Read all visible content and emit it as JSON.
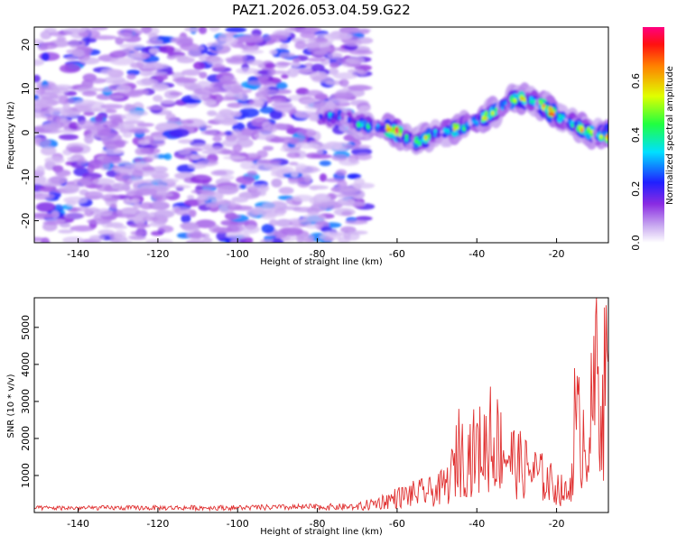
{
  "title": "PAZ1.2026.053.04.59.G22",
  "chart_data": [
    {
      "type": "heatmap",
      "xlabel": "Height of straight line (km)",
      "ylabel": "Frequency (Hz)",
      "xlim": [
        -151,
        -7
      ],
      "ylim": [
        -25,
        24
      ],
      "xticks": [
        -140,
        -120,
        -100,
        -80,
        -60,
        -40,
        -20
      ],
      "yticks": [
        20,
        10,
        0,
        -10,
        -20
      ],
      "colorbar": {
        "label": "Normalized spectral amplitude",
        "range": [
          0,
          0.8
        ],
        "ticks": [
          0.0,
          0.2,
          0.4,
          0.6
        ]
      },
      "noise_region": {
        "x": [
          -151,
          -68
        ],
        "amplitude": [
          0.05,
          0.3
        ]
      },
      "signal_ridge": [
        {
          "x": -80,
          "freq": 3,
          "amp": 0.25
        },
        {
          "x": -75,
          "freq": 4,
          "amp": 0.3
        },
        {
          "x": -70,
          "freq": 2,
          "amp": 0.35
        },
        {
          "x": -65,
          "freq": 1.5,
          "amp": 0.45
        },
        {
          "x": -60,
          "freq": 0,
          "amp": 0.75
        },
        {
          "x": -55,
          "freq": -2,
          "amp": 0.5
        },
        {
          "x": -50,
          "freq": 0,
          "amp": 0.45
        },
        {
          "x": -45,
          "freq": 1,
          "amp": 0.5
        },
        {
          "x": -40,
          "freq": 2.5,
          "amp": 0.5
        },
        {
          "x": -35,
          "freq": 5,
          "amp": 0.55
        },
        {
          "x": -30,
          "freq": 8,
          "amp": 0.5
        },
        {
          "x": -25,
          "freq": 7,
          "amp": 0.7
        },
        {
          "x": -20,
          "freq": 4,
          "amp": 0.6
        },
        {
          "x": -15,
          "freq": 1.5,
          "amp": 0.45
        },
        {
          "x": -10,
          "freq": -0.5,
          "amp": 0.75
        },
        {
          "x": -7,
          "freq": -0.5,
          "amp": 0.75
        }
      ]
    },
    {
      "type": "line",
      "xlabel": "Height of straight line (km)",
      "ylabel": "SNR (10 * v/v)",
      "xlim": [
        -151,
        -7
      ],
      "ylim": [
        0,
        5800
      ],
      "xticks": [
        -140,
        -120,
        -100,
        -80,
        -60,
        -40,
        -20
      ],
      "yticks": [
        1000,
        2000,
        3000,
        4000,
        5000
      ],
      "color": "#e03030",
      "envelope": [
        {
          "x": -151,
          "y": 180
        },
        {
          "x": -100,
          "y": 200
        },
        {
          "x": -70,
          "y": 250
        },
        {
          "x": -65,
          "y": 450
        },
        {
          "x": -60,
          "y": 700
        },
        {
          "x": -55,
          "y": 900
        },
        {
          "x": -50,
          "y": 1000
        },
        {
          "x": -47,
          "y": 1400
        },
        {
          "x": -45,
          "y": 2500
        },
        {
          "x": -40,
          "y": 2900
        },
        {
          "x": -35,
          "y": 3300
        },
        {
          "x": -30,
          "y": 2300
        },
        {
          "x": -25,
          "y": 1800
        },
        {
          "x": -20,
          "y": 1200
        },
        {
          "x": -17,
          "y": 800
        },
        {
          "x": -15,
          "y": 3900
        },
        {
          "x": -12,
          "y": 3600
        },
        {
          "x": -10,
          "y": 5800
        },
        {
          "x": -7,
          "y": 5600
        }
      ],
      "peaks": [
        {
          "x": -44.5,
          "y": 2800
        },
        {
          "x": -36.5,
          "y": 3400
        },
        {
          "x": -15.5,
          "y": 3900
        },
        {
          "x": -10,
          "y": 5800
        },
        {
          "x": -7.5,
          "y": 5600
        }
      ]
    }
  ]
}
